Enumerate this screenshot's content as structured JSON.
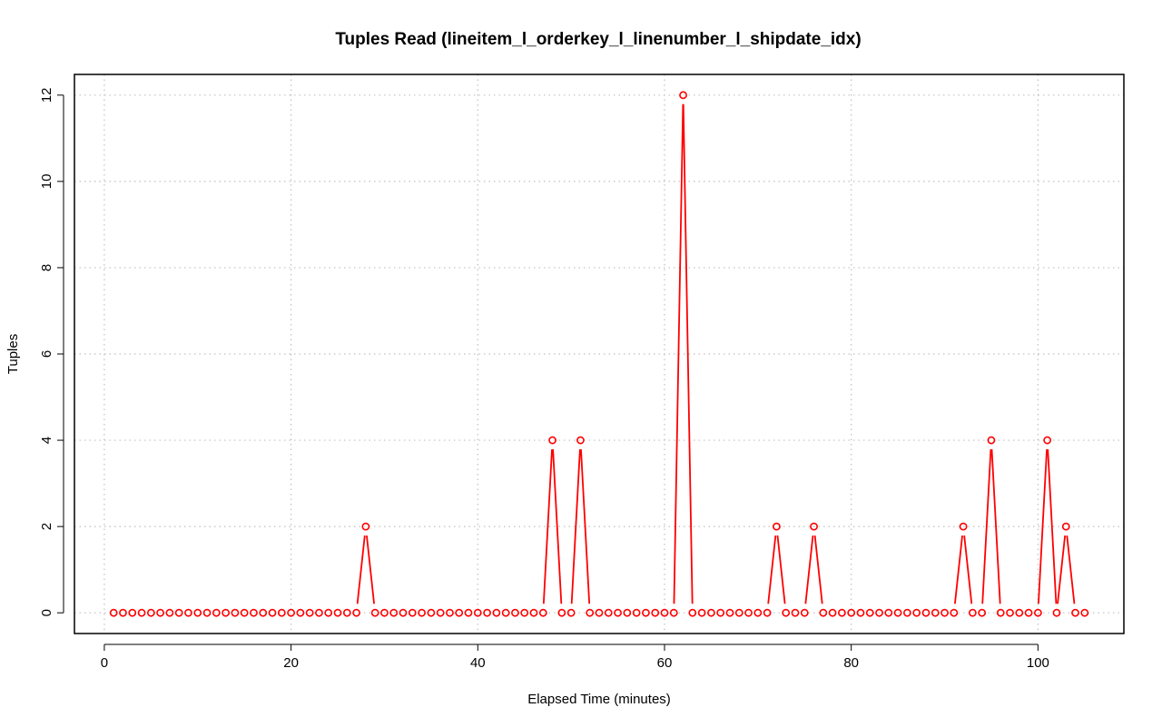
{
  "chart_data": {
    "type": "line",
    "title": "Tuples Read (lineitem_l_orderkey_l_linenumber_l_shipdate_idx)",
    "xlabel": "Elapsed Time (minutes)",
    "ylabel": "Tuples",
    "xlim": [
      -3.2,
      109.2
    ],
    "ylim": [
      -0.48,
      12.48
    ],
    "x_ticks": [
      0,
      20,
      40,
      60,
      80,
      100
    ],
    "y_ticks": [
      0,
      2,
      4,
      6,
      8,
      10,
      12
    ],
    "grid": true,
    "legend": "none",
    "series": [
      {
        "color": "#ff0000",
        "marker": "open-circle",
        "x": [
          1,
          2,
          3,
          4,
          5,
          6,
          7,
          8,
          9,
          10,
          11,
          12,
          13,
          14,
          15,
          16,
          17,
          18,
          19,
          20,
          21,
          22,
          23,
          24,
          25,
          26,
          27,
          28,
          29,
          30,
          31,
          32,
          33,
          34,
          35,
          36,
          37,
          38,
          39,
          40,
          41,
          42,
          43,
          44,
          45,
          46,
          47,
          48,
          49,
          50,
          51,
          52,
          53,
          54,
          55,
          56,
          57,
          58,
          59,
          60,
          61,
          62,
          63,
          64,
          65,
          66,
          67,
          68,
          69,
          70,
          71,
          72,
          73,
          74,
          75,
          76,
          77,
          78,
          79,
          80,
          81,
          82,
          83,
          84,
          85,
          86,
          87,
          88,
          89,
          90,
          91,
          92,
          93,
          94,
          95,
          96,
          97,
          98,
          99,
          100,
          101,
          102,
          103,
          104,
          105
        ],
        "y": [
          0,
          0,
          0,
          0,
          0,
          0,
          0,
          0,
          0,
          0,
          0,
          0,
          0,
          0,
          0,
          0,
          0,
          0,
          0,
          0,
          0,
          0,
          0,
          0,
          0,
          0,
          0,
          2,
          0,
          0,
          0,
          0,
          0,
          0,
          0,
          0,
          0,
          0,
          0,
          0,
          0,
          0,
          0,
          0,
          0,
          0,
          0,
          4,
          0,
          0,
          4,
          0,
          0,
          0,
          0,
          0,
          0,
          0,
          0,
          0,
          0,
          12,
          0,
          0,
          0,
          0,
          0,
          0,
          0,
          0,
          0,
          2,
          0,
          0,
          0,
          2,
          0,
          0,
          0,
          0,
          0,
          0,
          0,
          0,
          0,
          0,
          0,
          0,
          0,
          0,
          0,
          2,
          0,
          0,
          4,
          0,
          0,
          0,
          0,
          0,
          4,
          0,
          2,
          0,
          0
        ]
      }
    ]
  }
}
